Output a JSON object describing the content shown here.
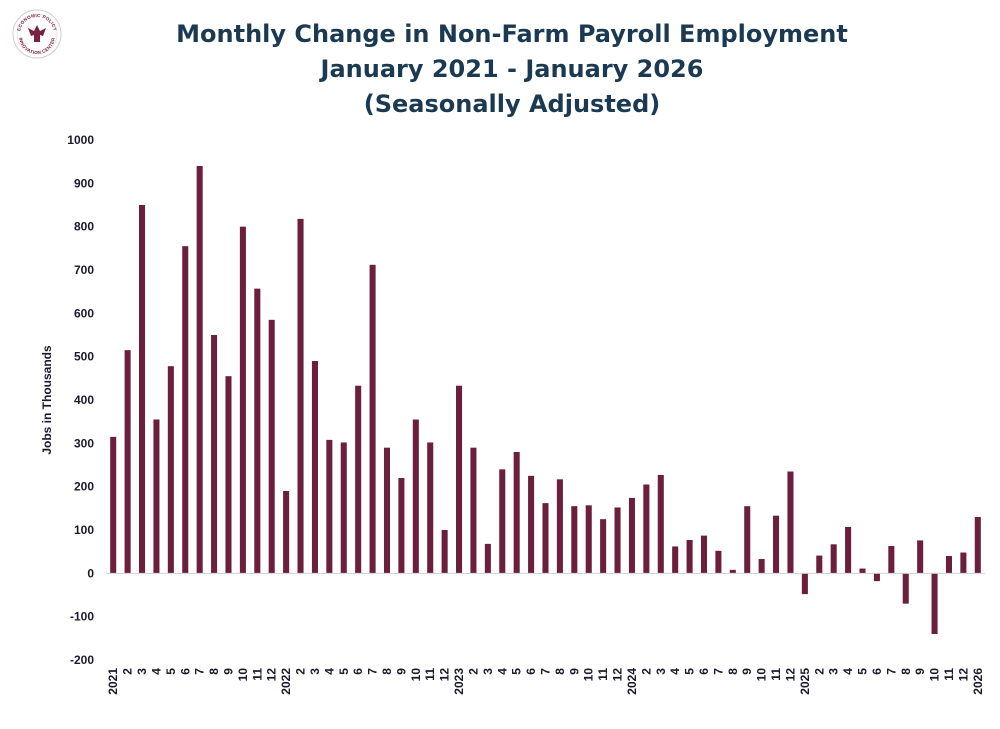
{
  "logo": {
    "text_top": "ECONOMIC POLICY",
    "text_bottom": "INNOVATION CENTER",
    "color": "#7a2040"
  },
  "chart_data": {
    "type": "bar",
    "title": "Monthly Change in Non-Farm Payroll Employment",
    "subtitle_lines": [
      "January 2021 - January 2026",
      "(Seasonally Adjusted)"
    ],
    "xlabel": "",
    "ylabel": "Jobs in Thousands",
    "ylim": [
      -200,
      1000
    ],
    "yticks": [
      -200,
      -100,
      0,
      100,
      200,
      300,
      400,
      500,
      600,
      700,
      800,
      900,
      1000
    ],
    "grid": false,
    "bar_color": "#6b1f3d",
    "title_color": "#1b3a52",
    "categories": [
      "2021",
      "2",
      "3",
      "4",
      "5",
      "6",
      "7",
      "8",
      "9",
      "10",
      "11",
      "12",
      "2022",
      "2",
      "3",
      "4",
      "5",
      "6",
      "7",
      "8",
      "9",
      "10",
      "11",
      "12",
      "2023",
      "2",
      "3",
      "4",
      "5",
      "6",
      "7",
      "8",
      "9",
      "10",
      "11",
      "12",
      "2024",
      "2",
      "3",
      "4",
      "5",
      "6",
      "7",
      "8",
      "9",
      "10",
      "11",
      "12",
      "2025",
      "2",
      "3",
      "4",
      "5",
      "6",
      "7",
      "8",
      "9",
      "10",
      "11",
      "12",
      "2026"
    ],
    "values": [
      315,
      515,
      850,
      355,
      478,
      755,
      940,
      550,
      455,
      800,
      657,
      585,
      190,
      818,
      490,
      308,
      302,
      433,
      712,
      290,
      220,
      355,
      302,
      100,
      433,
      290,
      68,
      240,
      280,
      225,
      162,
      217,
      155,
      157,
      125,
      152,
      174,
      205,
      227,
      62,
      77,
      87,
      52,
      8,
      155,
      33,
      133,
      235,
      -48,
      41,
      67,
      107,
      11,
      -18,
      63,
      -70,
      76,
      -140,
      40,
      48,
      130
    ]
  }
}
